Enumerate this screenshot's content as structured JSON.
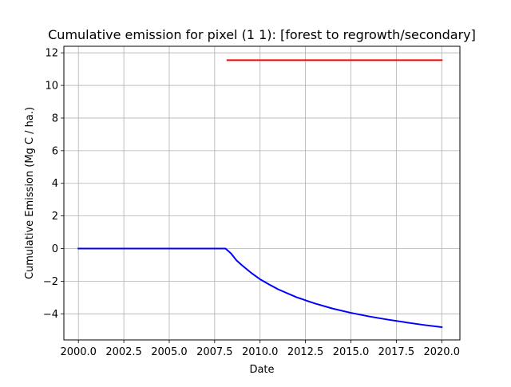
{
  "chart_data": {
    "type": "line",
    "title": "Cumulative emission for pixel (1 1): [forest to regrowth/secondary]",
    "xlabel": "Date",
    "ylabel": "Cumulative Emission (Mg C / ha.)",
    "xlim": [
      1999.2,
      2021.0
    ],
    "ylim": [
      -5.6,
      12.4
    ],
    "xticks": [
      2000.0,
      2002.5,
      2005.0,
      2007.5,
      2010.0,
      2012.5,
      2015.0,
      2017.5,
      2020.0
    ],
    "xtick_labels": [
      "2000.0",
      "2002.5",
      "2005.0",
      "2007.5",
      "2010.0",
      "2012.5",
      "2015.0",
      "2017.5",
      "2020.0"
    ],
    "yticks": [
      -4,
      -2,
      0,
      2,
      4,
      6,
      8,
      10,
      12
    ],
    "ytick_labels": [
      "−4",
      "−2",
      "0",
      "2",
      "4",
      "6",
      "8",
      "10",
      "12"
    ],
    "grid": true,
    "legend": "none",
    "series": [
      {
        "color": "#0000ff",
        "x": [
          2000.0,
          2008.1,
          2008.4,
          2008.7,
          2009.0,
          2009.5,
          2010.0,
          2010.5,
          2011.0,
          2012.0,
          2013.0,
          2014.0,
          2015.0,
          2016.0,
          2017.0,
          2018.0,
          2019.0,
          2020.0
        ],
        "y": [
          0,
          0,
          -0.3,
          -0.72,
          -1.02,
          -1.48,
          -1.88,
          -2.2,
          -2.5,
          -2.98,
          -3.36,
          -3.68,
          -3.94,
          -4.16,
          -4.35,
          -4.52,
          -4.68,
          -4.82
        ]
      },
      {
        "color": "#ff0000",
        "x": [
          2008.2,
          2020.0
        ],
        "y": [
          11.55,
          11.55
        ]
      }
    ]
  }
}
